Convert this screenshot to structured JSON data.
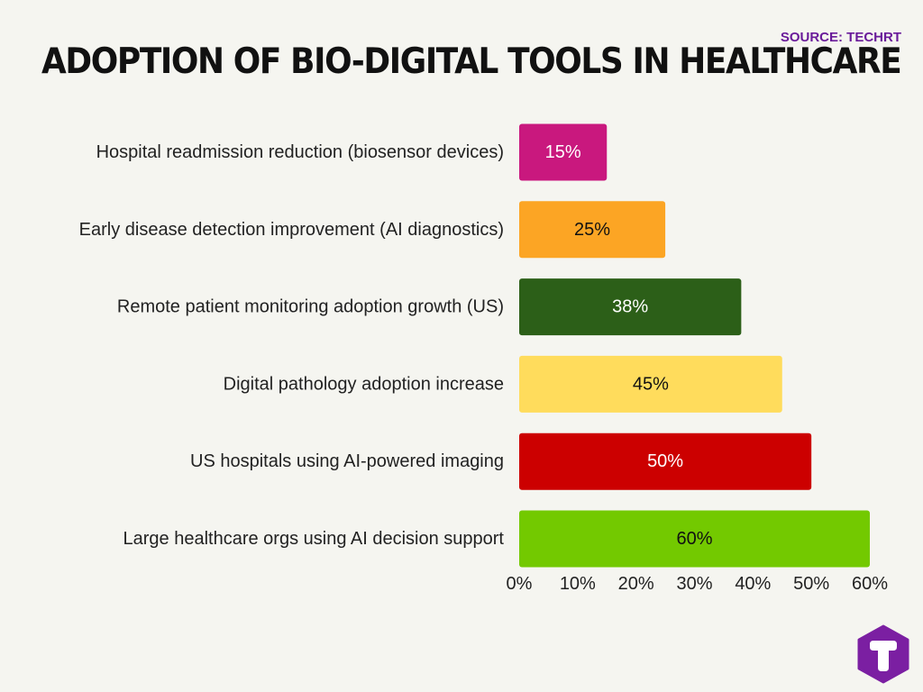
{
  "header": {
    "title": "ADOPTION OF BIO-DIGITAL TOOLS IN HEALTHCARE",
    "source": "SOURCE: TECHRT"
  },
  "chart_data": {
    "type": "bar",
    "orientation": "horizontal",
    "title": "ADOPTION OF BIO-DIGITAL TOOLS IN HEALTHCARE",
    "categories": [
      "Hospital readmission reduction (biosensor devices)",
      "Early disease detection improvement (AI diagnostics)",
      "Remote patient monitoring adoption growth (US)",
      "Digital pathology adoption increase",
      "US hospitals using AI-powered imaging",
      "Large healthcare orgs using AI decision support"
    ],
    "values": [
      15,
      25,
      38,
      45,
      50,
      60
    ],
    "data_labels": [
      "15%",
      "25%",
      "38%",
      "45%",
      "50%",
      "60%"
    ],
    "colors": [
      "#c9187e",
      "#fca524",
      "#2c5f18",
      "#ffdc5c",
      "#cc0000",
      "#73c900"
    ],
    "label_colors": [
      "#ffffff",
      "#111111",
      "#ffffff",
      "#111111",
      "#ffffff",
      "#111111"
    ],
    "xlim": [
      0,
      60
    ],
    "xticks": [
      0,
      10,
      20,
      30,
      40,
      50,
      60
    ],
    "xtick_labels": [
      "0%",
      "10%",
      "20%",
      "30%",
      "40%",
      "50%",
      "60%"
    ],
    "xlabel": "",
    "ylabel": "",
    "grid": false,
    "legend": "none"
  },
  "logo": {
    "icon": "techrt-t-hexagon-icon",
    "color": "#7b1fa2"
  }
}
